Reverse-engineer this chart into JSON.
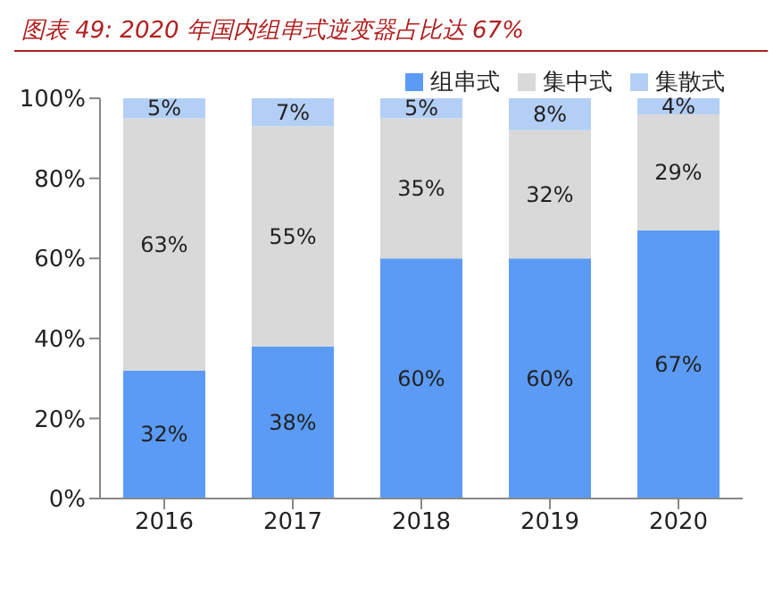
{
  "chart_data": {
    "type": "bar",
    "title": "图表 49:  2020 年国内组串式逆变器占比达 67%",
    "categories": [
      "2016",
      "2017",
      "2018",
      "2019",
      "2020"
    ],
    "stacked": true,
    "legend": "top right",
    "grid": false,
    "ylim": [
      0,
      100
    ],
    "yticks": [
      {
        "value": 0,
        "label": "0%"
      },
      {
        "value": 20,
        "label": "20%"
      },
      {
        "value": 40,
        "label": "40%"
      },
      {
        "value": 60,
        "label": "60%"
      },
      {
        "value": 80,
        "label": "80%"
      },
      {
        "value": 100,
        "label": "100%"
      }
    ],
    "series": [
      {
        "name": "组串式",
        "color": "#5b9bf5",
        "values": [
          32,
          38,
          60,
          60,
          67
        ],
        "value_labels": [
          "32%",
          "38%",
          "60%",
          "60%",
          "67%"
        ]
      },
      {
        "name": "集中式",
        "color": "#d9d9d9",
        "values": [
          63,
          55,
          35,
          32,
          29
        ],
        "value_labels": [
          "63%",
          "55%",
          "35%",
          "32%",
          "29%"
        ]
      },
      {
        "name": "集散式",
        "color": "#b4cff5",
        "values": [
          5,
          7,
          5,
          8,
          4
        ],
        "value_labels": [
          "5%",
          "7%",
          "5%",
          "8%",
          "4%"
        ]
      }
    ]
  }
}
